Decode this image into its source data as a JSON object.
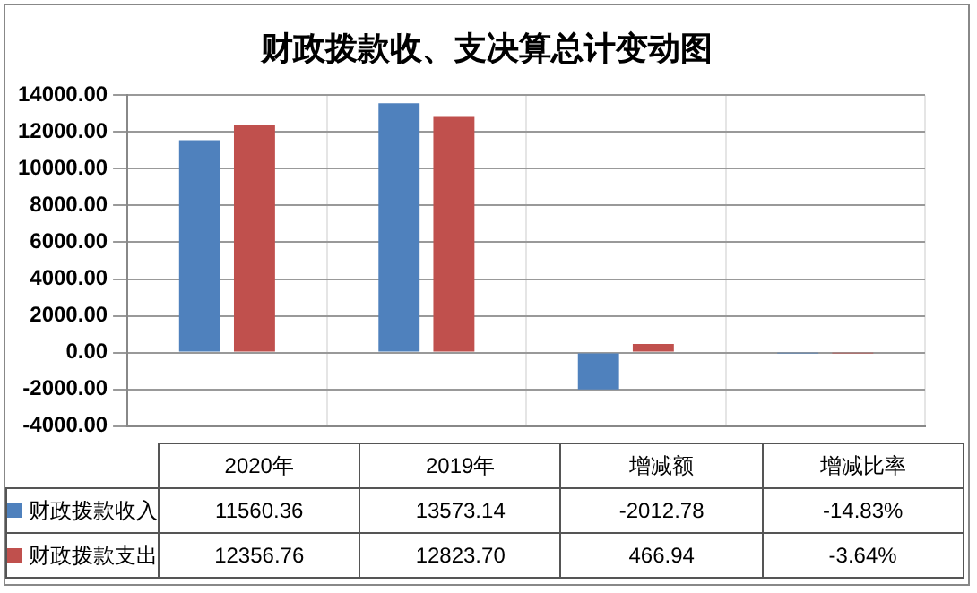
{
  "chart_data": {
    "type": "bar",
    "title": "财政拨款收、支决算总计变动图",
    "categories": [
      "2020年",
      "2019年",
      "增减额",
      "增减比率"
    ],
    "series": [
      {
        "name": "财政拨款收入",
        "color": "#4f81bd",
        "values": [
          11560.36,
          13573.14,
          -2012.78,
          -14.83
        ],
        "value_labels": [
          "11560.36",
          "13573.14",
          "-2012.78",
          "-14.83%"
        ]
      },
      {
        "name": "财政拨款支出",
        "color": "#c0504d",
        "values": [
          12356.76,
          12823.7,
          466.94,
          -3.64
        ],
        "value_labels": [
          "12356.76",
          "12823.70",
          "466.94",
          "-3.64%"
        ]
      }
    ],
    "ylim": [
      -4000,
      14000
    ],
    "yticks": [
      {
        "value": -4000,
        "label": "-4000.00"
      },
      {
        "value": -2000,
        "label": "-2000.00"
      },
      {
        "value": 0,
        "label": "0.00"
      },
      {
        "value": 2000,
        "label": "2000.00"
      },
      {
        "value": 4000,
        "label": "4000.00"
      },
      {
        "value": 6000,
        "label": "6000.00"
      },
      {
        "value": 8000,
        "label": "8000.00"
      },
      {
        "value": 10000,
        "label": "10000.00"
      },
      {
        "value": 12000,
        "label": "12000.00"
      },
      {
        "value": 14000,
        "label": "14000.00"
      }
    ],
    "grid": true,
    "legend": "bottom"
  }
}
